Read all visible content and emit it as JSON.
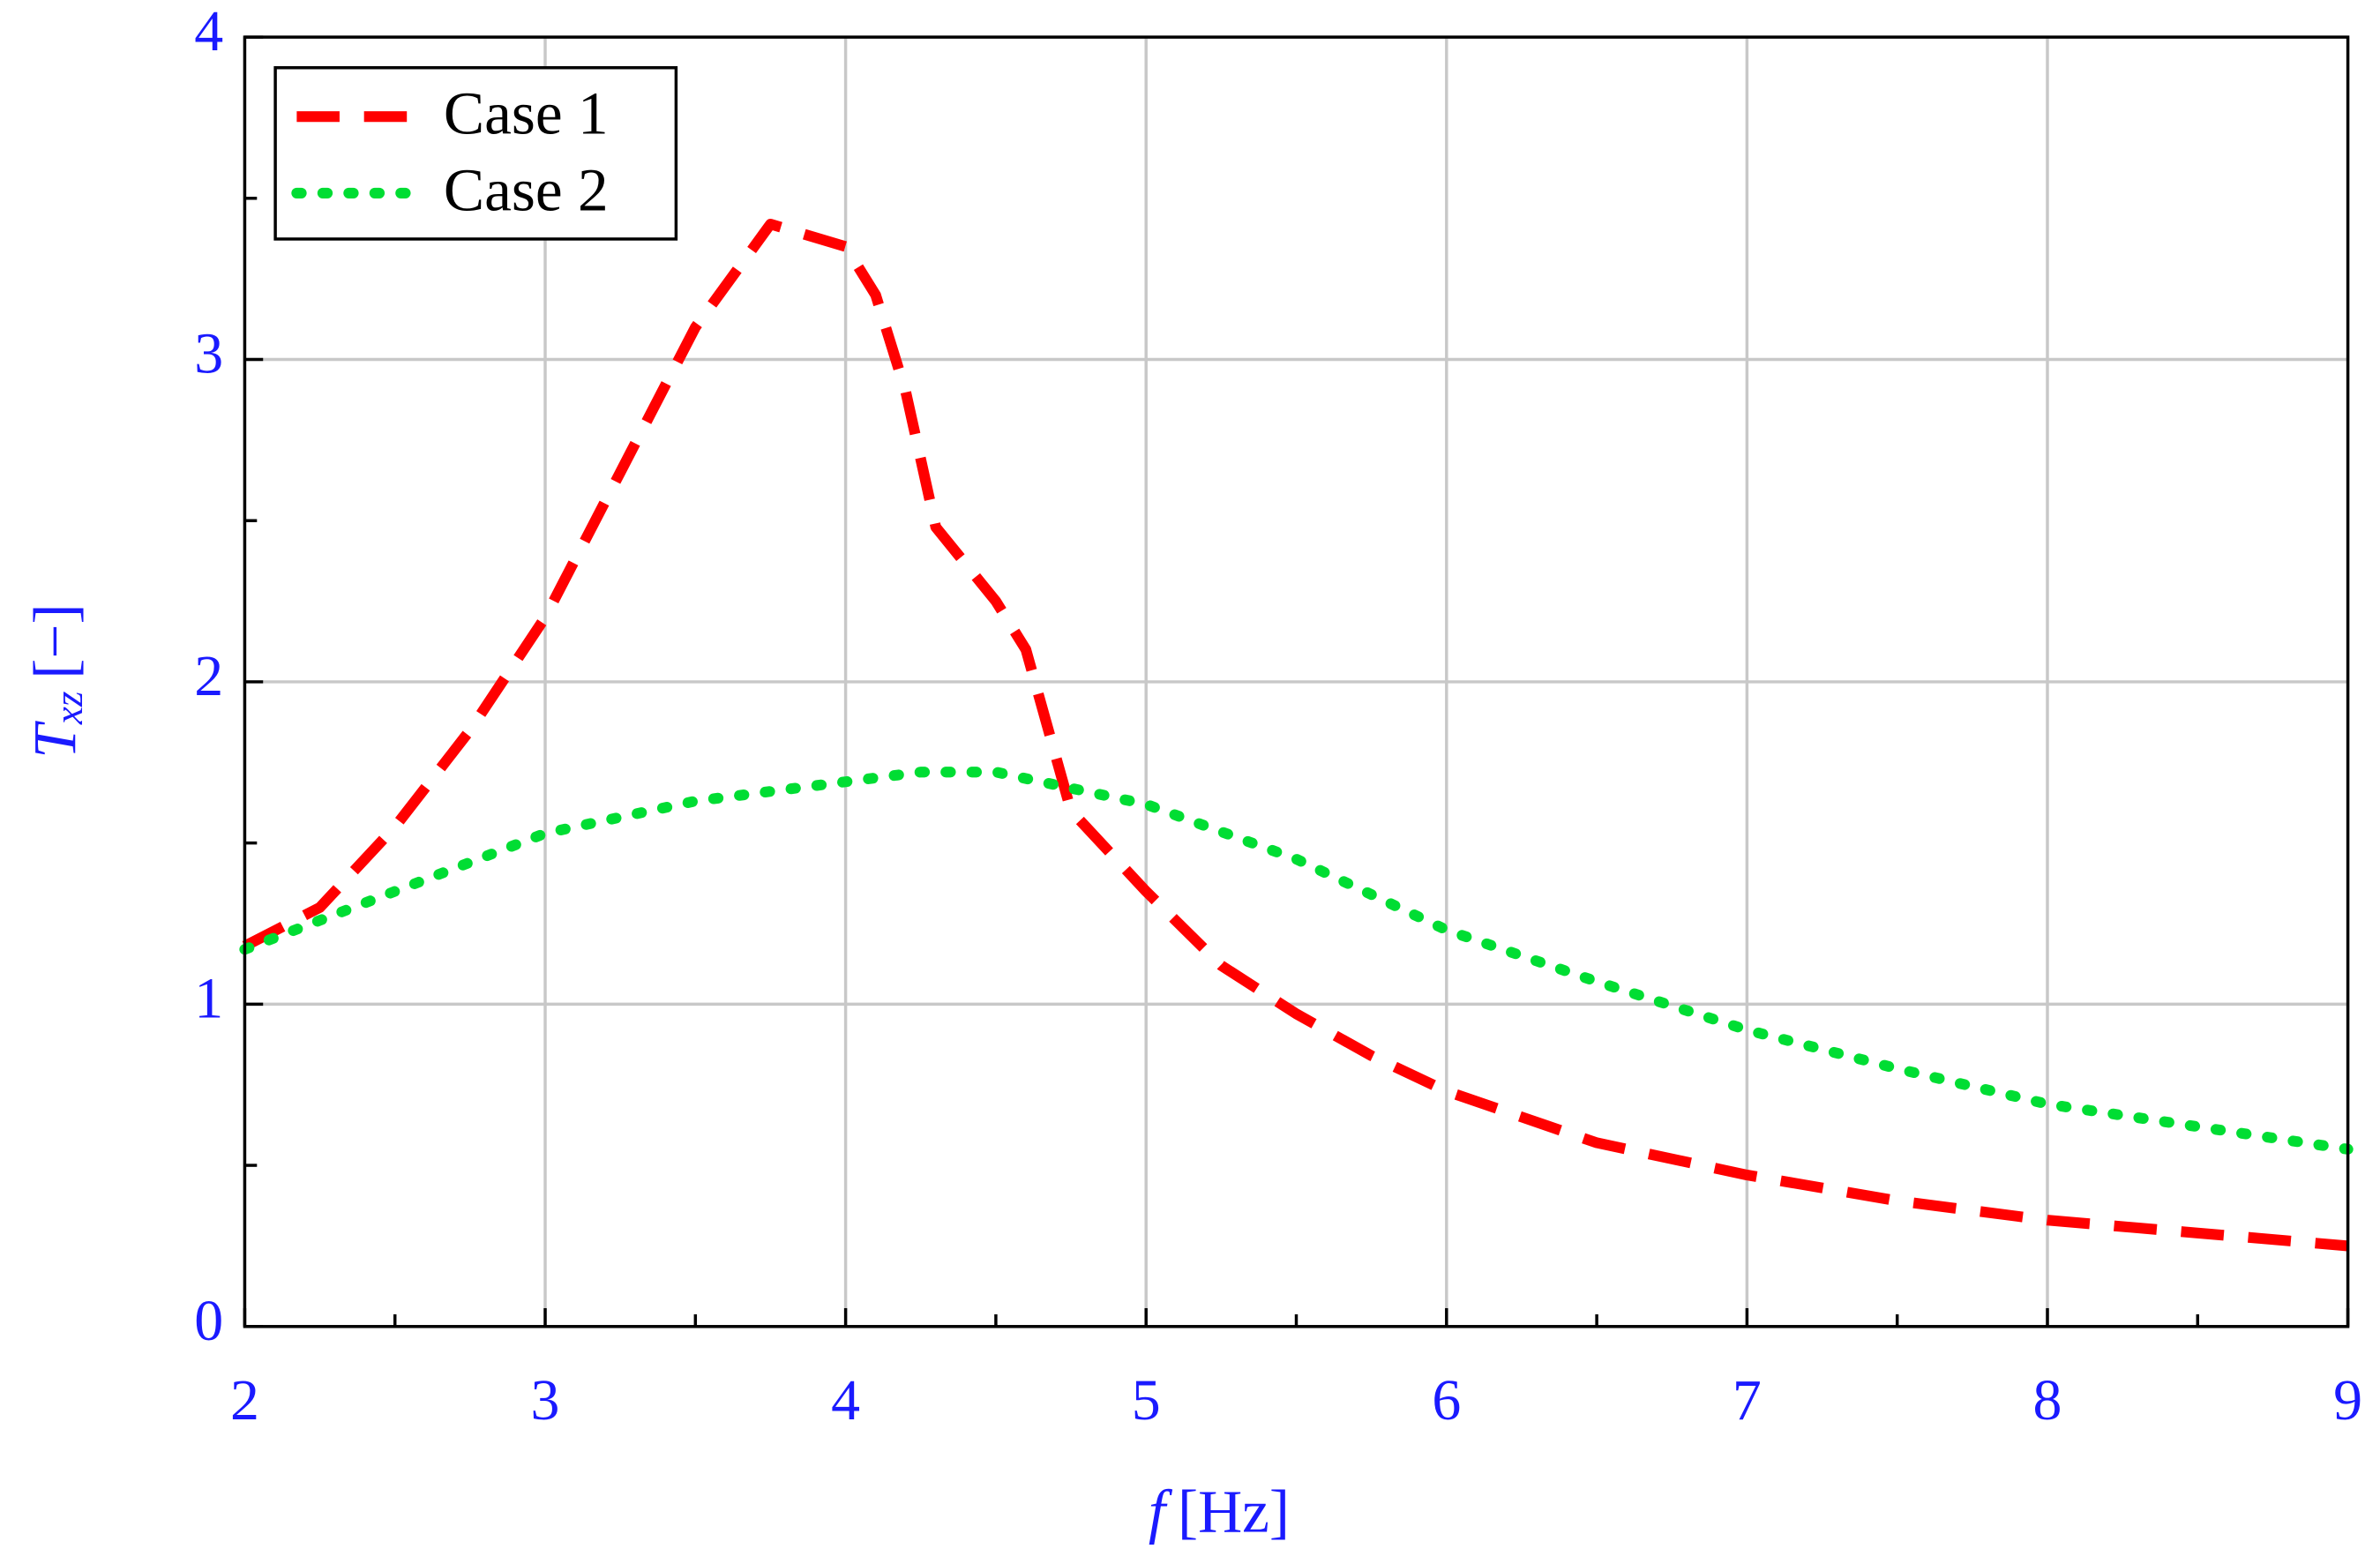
{
  "chart_data": {
    "type": "line",
    "x_label": {
      "symbol": "f",
      "unit": "[Hz]"
    },
    "y_label": {
      "symbol": "T",
      "subscript": "xz",
      "unit": "[−]"
    },
    "xlim": [
      2,
      9
    ],
    "ylim": [
      0,
      4
    ],
    "xticks": [
      2,
      3,
      4,
      5,
      6,
      7,
      8,
      9
    ],
    "yticks": [
      0,
      1,
      2,
      3,
      4
    ],
    "xminorticks": [
      2.5,
      3.5,
      4.5,
      5.5,
      6.5,
      7.5,
      8.5
    ],
    "yminorticks": [
      0.5,
      1.5,
      2.5,
      3.5
    ],
    "grid": true,
    "legend": "upper-left",
    "label_color": "#1a1aff",
    "series": [
      {
        "name": "Case 1",
        "color": "#ff0000",
        "style": "dashed",
        "x": [
          2,
          2.25,
          2.5,
          2.75,
          3,
          3.25,
          3.5,
          3.75,
          4,
          4.1,
          4.2,
          4.3,
          4.5,
          4.6,
          4.75,
          5,
          5.25,
          5.5,
          5.75,
          6,
          6.5,
          7,
          7.5,
          8,
          8.5,
          9
        ],
        "values": [
          1.18,
          1.3,
          1.55,
          1.85,
          2.2,
          2.65,
          3.1,
          3.42,
          3.35,
          3.2,
          2.9,
          2.48,
          2.25,
          2.1,
          1.6,
          1.35,
          1.12,
          0.97,
          0.84,
          0.73,
          0.57,
          0.47,
          0.39,
          0.33,
          0.29,
          0.25
        ]
      },
      {
        "name": "Case 2",
        "color": "#00dd33",
        "style": "dotted",
        "x": [
          2,
          2.5,
          3,
          3.5,
          4,
          4.25,
          4.5,
          5,
          5.5,
          6,
          6.5,
          7,
          7.5,
          8,
          8.5,
          9
        ],
        "values": [
          1.17,
          1.35,
          1.53,
          1.63,
          1.69,
          1.72,
          1.72,
          1.62,
          1.45,
          1.23,
          1.07,
          0.92,
          0.8,
          0.69,
          0.62,
          0.55
        ]
      }
    ]
  }
}
